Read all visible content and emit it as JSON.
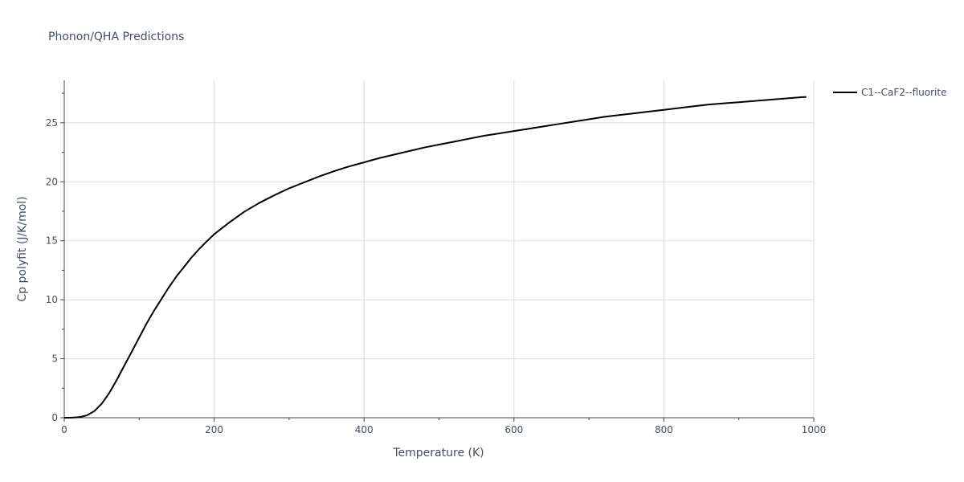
{
  "chart_data": {
    "type": "line",
    "title": "Phonon/QHA Predictions",
    "xlabel": "Temperature (K)",
    "ylabel": "Cp polyfit (J/K/mol)",
    "xlim": [
      0,
      1000
    ],
    "ylim": [
      0,
      28.6
    ],
    "xticks": [
      0,
      200,
      400,
      600,
      800,
      1000
    ],
    "yticks": [
      0,
      5,
      10,
      15,
      20,
      25
    ],
    "grid": true,
    "legend_position": "top-right outside",
    "series": [
      {
        "name": "C1--CaF2--fluorite",
        "color": "#000000",
        "x": [
          0,
          10,
          20,
          30,
          40,
          50,
          60,
          70,
          80,
          90,
          100,
          110,
          120,
          130,
          140,
          150,
          160,
          170,
          180,
          190,
          200,
          220,
          240,
          260,
          280,
          300,
          320,
          340,
          360,
          380,
          400,
          420,
          440,
          460,
          480,
          500,
          520,
          540,
          560,
          580,
          600,
          620,
          640,
          660,
          680,
          700,
          720,
          740,
          760,
          780,
          800,
          820,
          840,
          860,
          880,
          900,
          920,
          940,
          960,
          980,
          990
        ],
        "y": [
          0,
          0.01,
          0.05,
          0.2,
          0.55,
          1.2,
          2.1,
          3.2,
          4.4,
          5.6,
          6.8,
          8.0,
          9.1,
          10.1,
          11.1,
          12.0,
          12.8,
          13.6,
          14.3,
          14.95,
          15.55,
          16.55,
          17.45,
          18.2,
          18.85,
          19.45,
          19.95,
          20.45,
          20.9,
          21.3,
          21.65,
          22.0,
          22.3,
          22.6,
          22.9,
          23.15,
          23.4,
          23.65,
          23.9,
          24.1,
          24.3,
          24.5,
          24.7,
          24.9,
          25.1,
          25.3,
          25.5,
          25.65,
          25.8,
          25.95,
          26.1,
          26.25,
          26.4,
          26.55,
          26.65,
          26.75,
          26.85,
          26.95,
          27.05,
          27.15,
          27.2
        ]
      }
    ]
  }
}
